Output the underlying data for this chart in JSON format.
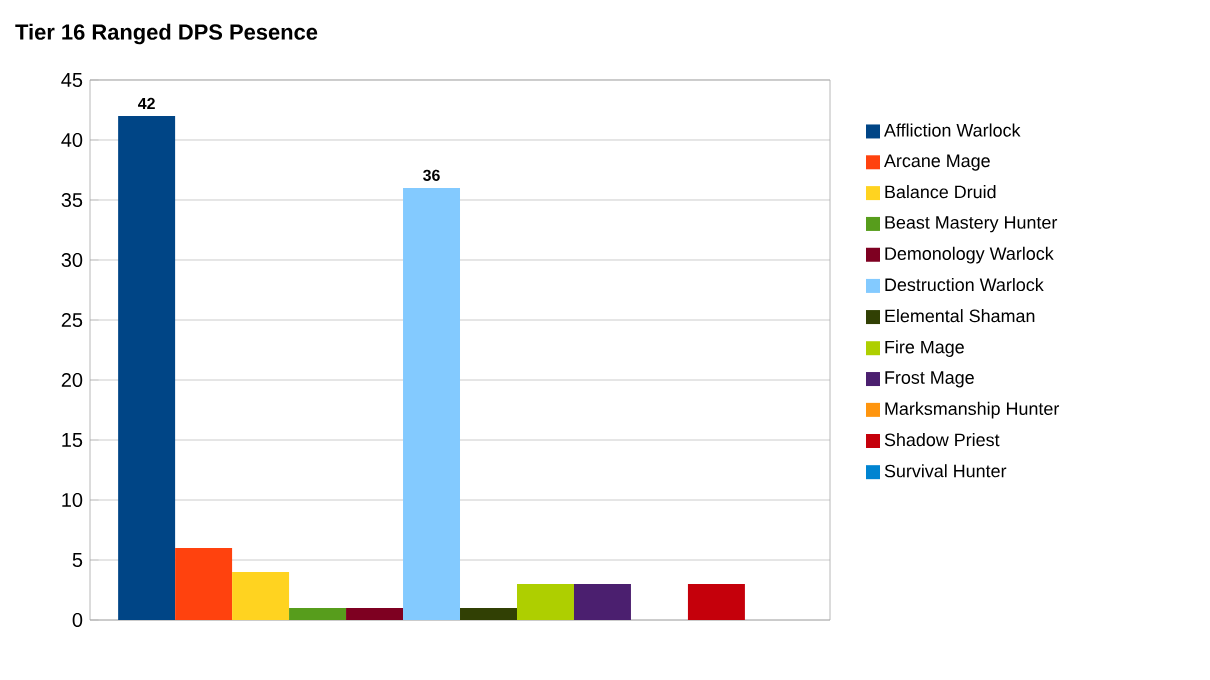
{
  "chart_data": {
    "type": "bar",
    "title": "Tier 16 Ranged DPS Pesence",
    "categories": [
      null
    ],
    "series": [
      {
        "name": "Affliction Warlock",
        "color": "#004586",
        "values": [
          42
        ],
        "value_labels": [
          "42"
        ]
      },
      {
        "name": "Arcane Mage",
        "color": "#ff420e",
        "values": [
          6
        ]
      },
      {
        "name": "Balance Druid",
        "color": "#ffd320",
        "values": [
          4
        ]
      },
      {
        "name": "Beast Mastery Hunter",
        "color": "#579d1c",
        "values": [
          1
        ]
      },
      {
        "name": "Demonology Warlock",
        "color": "#7e0021",
        "values": [
          1
        ]
      },
      {
        "name": "Destruction Warlock",
        "color": "#83caff",
        "values": [
          36
        ],
        "value_labels": [
          "36"
        ]
      },
      {
        "name": "Elemental Shaman",
        "color": "#314004",
        "values": [
          1
        ]
      },
      {
        "name": "Fire Mage",
        "color": "#aecf00",
        "values": [
          3
        ]
      },
      {
        "name": "Frost Mage",
        "color": "#4b1f6f",
        "values": [
          3
        ]
      },
      {
        "name": "Marksmanship Hunter",
        "color": "#ff950e",
        "values": [
          0
        ]
      },
      {
        "name": "Shadow Priest",
        "color": "#c5000b",
        "values": [
          3
        ]
      },
      {
        "name": "Survival Hunter",
        "color": "#0084d1",
        "values": [
          0
        ]
      }
    ],
    "ylim": [
      0,
      45
    ],
    "yticks": [
      0,
      5,
      10,
      15,
      20,
      25,
      30,
      35,
      40,
      45
    ],
    "grid": "y",
    "legend": "right"
  }
}
